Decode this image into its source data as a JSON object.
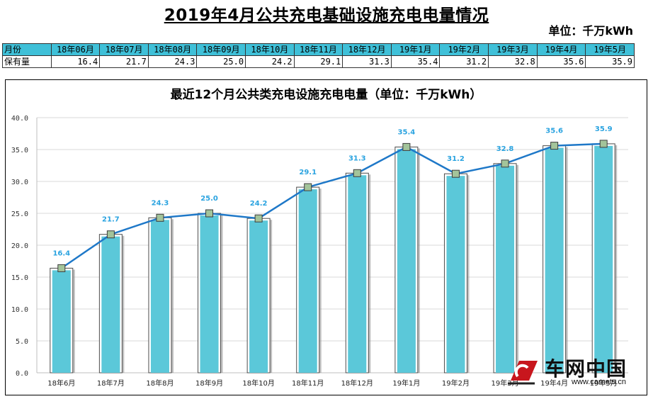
{
  "main_title": "2019年4月公共充电基础设施充电电量情况",
  "unit_note": "单位：千万kWh",
  "table": {
    "header_label": "月份",
    "value_label": "保有量",
    "months": [
      "18年06月",
      "18年07月",
      "18年08月",
      "18年09月",
      "18年10月",
      "18年11月",
      "18年12月",
      "19年1月",
      "19年2月",
      "19年3月",
      "19年4月",
      "19年5月"
    ],
    "values": [
      "16.4",
      "21.7",
      "24.3",
      "25.0",
      "24.2",
      "29.1",
      "31.3",
      "35.4",
      "31.2",
      "32.8",
      "35.6",
      "35.9"
    ]
  },
  "chart_data": {
    "type": "bar",
    "title": "最近12个月公共类充电设施充电电量（单位：千万kWh）",
    "categories": [
      "18年6月",
      "18年7月",
      "18年8月",
      "18年9月",
      "18年10月",
      "18年11月",
      "18年12月",
      "19年1月",
      "19年2月",
      "19年3月",
      "19年4月",
      "19年5月"
    ],
    "values": [
      16.4,
      21.7,
      24.3,
      25.0,
      24.2,
      29.1,
      31.3,
      35.4,
      31.2,
      32.8,
      35.6,
      35.9
    ],
    "overlay_line": true,
    "ylim": [
      0,
      40
    ],
    "yticks": [
      "0.0",
      "5.0",
      "10.0",
      "15.0",
      "20.0",
      "25.0",
      "30.0",
      "35.0",
      "40.0"
    ],
    "grid": true,
    "xlabel": "",
    "ylabel": "",
    "bar_color": "#5bc8d9",
    "line_color": "#1e78c8",
    "label_color": "#2aa3e0",
    "marker_color": "#a3c49a"
  },
  "watermark": {
    "name": "车网中国",
    "url": "www.carnets.cn"
  }
}
